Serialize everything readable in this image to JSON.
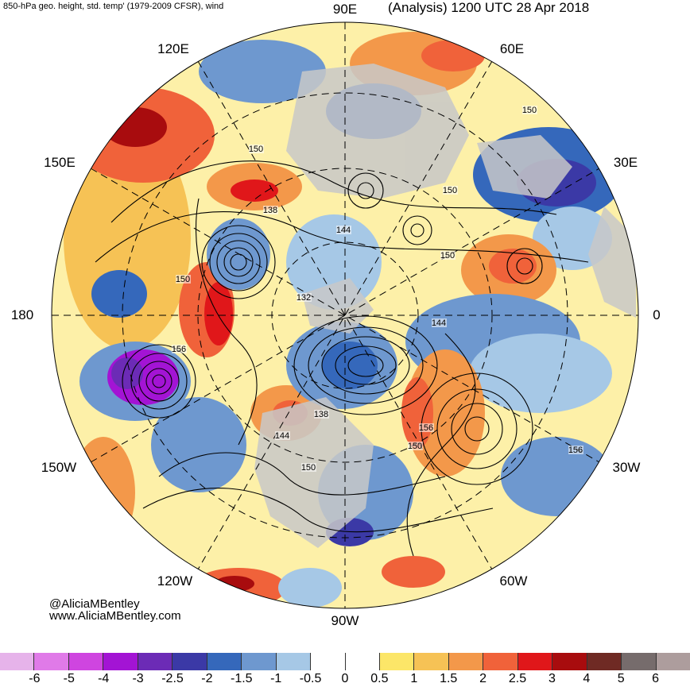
{
  "header": {
    "left_title": "850-hPa geo. height, std. temp' (1979-2009 CFSR), wind",
    "right_title": "(Analysis) 1200 UTC 28 Apr 2018"
  },
  "map": {
    "projection": "north polar stereographic",
    "longitude_labels": [
      "90E",
      "60E",
      "30E",
      "0",
      "30W",
      "60W",
      "90W",
      "120W",
      "150W",
      "180",
      "150E",
      "120E"
    ],
    "contour_labels": [
      "150",
      "150",
      "150",
      "138",
      "144",
      "150",
      "132",
      "144",
      "150",
      "156",
      "138",
      "144",
      "150",
      "156",
      "150",
      "156"
    ],
    "colors": {
      "land_gray": "#c8c8c8",
      "contour": "#000000"
    }
  },
  "credits": {
    "handle": "@AliciaMBentley",
    "website": "www.AliciaMBentley.com"
  },
  "colorbar": {
    "tick_labels": [
      "-6",
      "-5",
      "-4",
      "-3",
      "-2.5",
      "-2",
      "-1.5",
      "-1",
      "-0.5",
      "0",
      "0.5",
      "1",
      "1.5",
      "2",
      "2.5",
      "3",
      "4",
      "5",
      "6"
    ],
    "colors": [
      "#e6b3ea",
      "#e07ae8",
      "#cf45e0",
      "#a314d4",
      "#6c2bb6",
      "#3b39a6",
      "#3568bb",
      "#6e98cf",
      "#a6c8e6",
      "#ffffff",
      "#ffffff",
      "#fce668",
      "#f6c255",
      "#f3984a",
      "#f0623a",
      "#e0171a",
      "#a80c0e",
      "#6f2a24",
      "#766c6c",
      "#ad9d9d"
    ]
  }
}
